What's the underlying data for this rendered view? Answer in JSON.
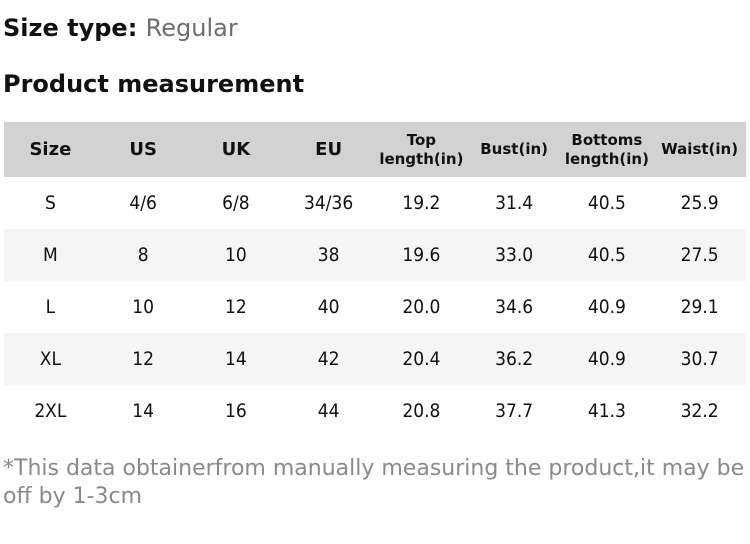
{
  "page": {
    "size_type_label": "Size type:",
    "size_type_value": "Regular",
    "section_title": "Product measurement",
    "note": "*This data obtainerfrom manually measuring the product,it may be off by 1-3cm"
  },
  "table": {
    "columns": [
      "Size",
      "US",
      "UK",
      "EU",
      "Top length(in)",
      "Bust(in)",
      "Bottoms length(in)",
      "Waist(in)"
    ],
    "rows": [
      [
        "S",
        "4/6",
        "6/8",
        "34/36",
        "19.2",
        "31.4",
        "40.5",
        "25.9"
      ],
      [
        "M",
        "8",
        "10",
        "38",
        "19.6",
        "33.0",
        "40.5",
        "27.5"
      ],
      [
        "L",
        "10",
        "12",
        "40",
        "20.0",
        "34.6",
        "40.9",
        "29.1"
      ],
      [
        "XL",
        "12",
        "14",
        "42",
        "20.4",
        "36.2",
        "40.9",
        "30.7"
      ],
      [
        "2XL",
        "14",
        "16",
        "44",
        "20.8",
        "37.7",
        "41.3",
        "32.2"
      ]
    ]
  },
  "colors": {
    "header_bg": "#d2d2d2",
    "alt_row_bg": "#f5f5f5",
    "heading_text": "#111111",
    "muted_text": "#6e6e6e",
    "note_text": "#8a8a8a"
  }
}
